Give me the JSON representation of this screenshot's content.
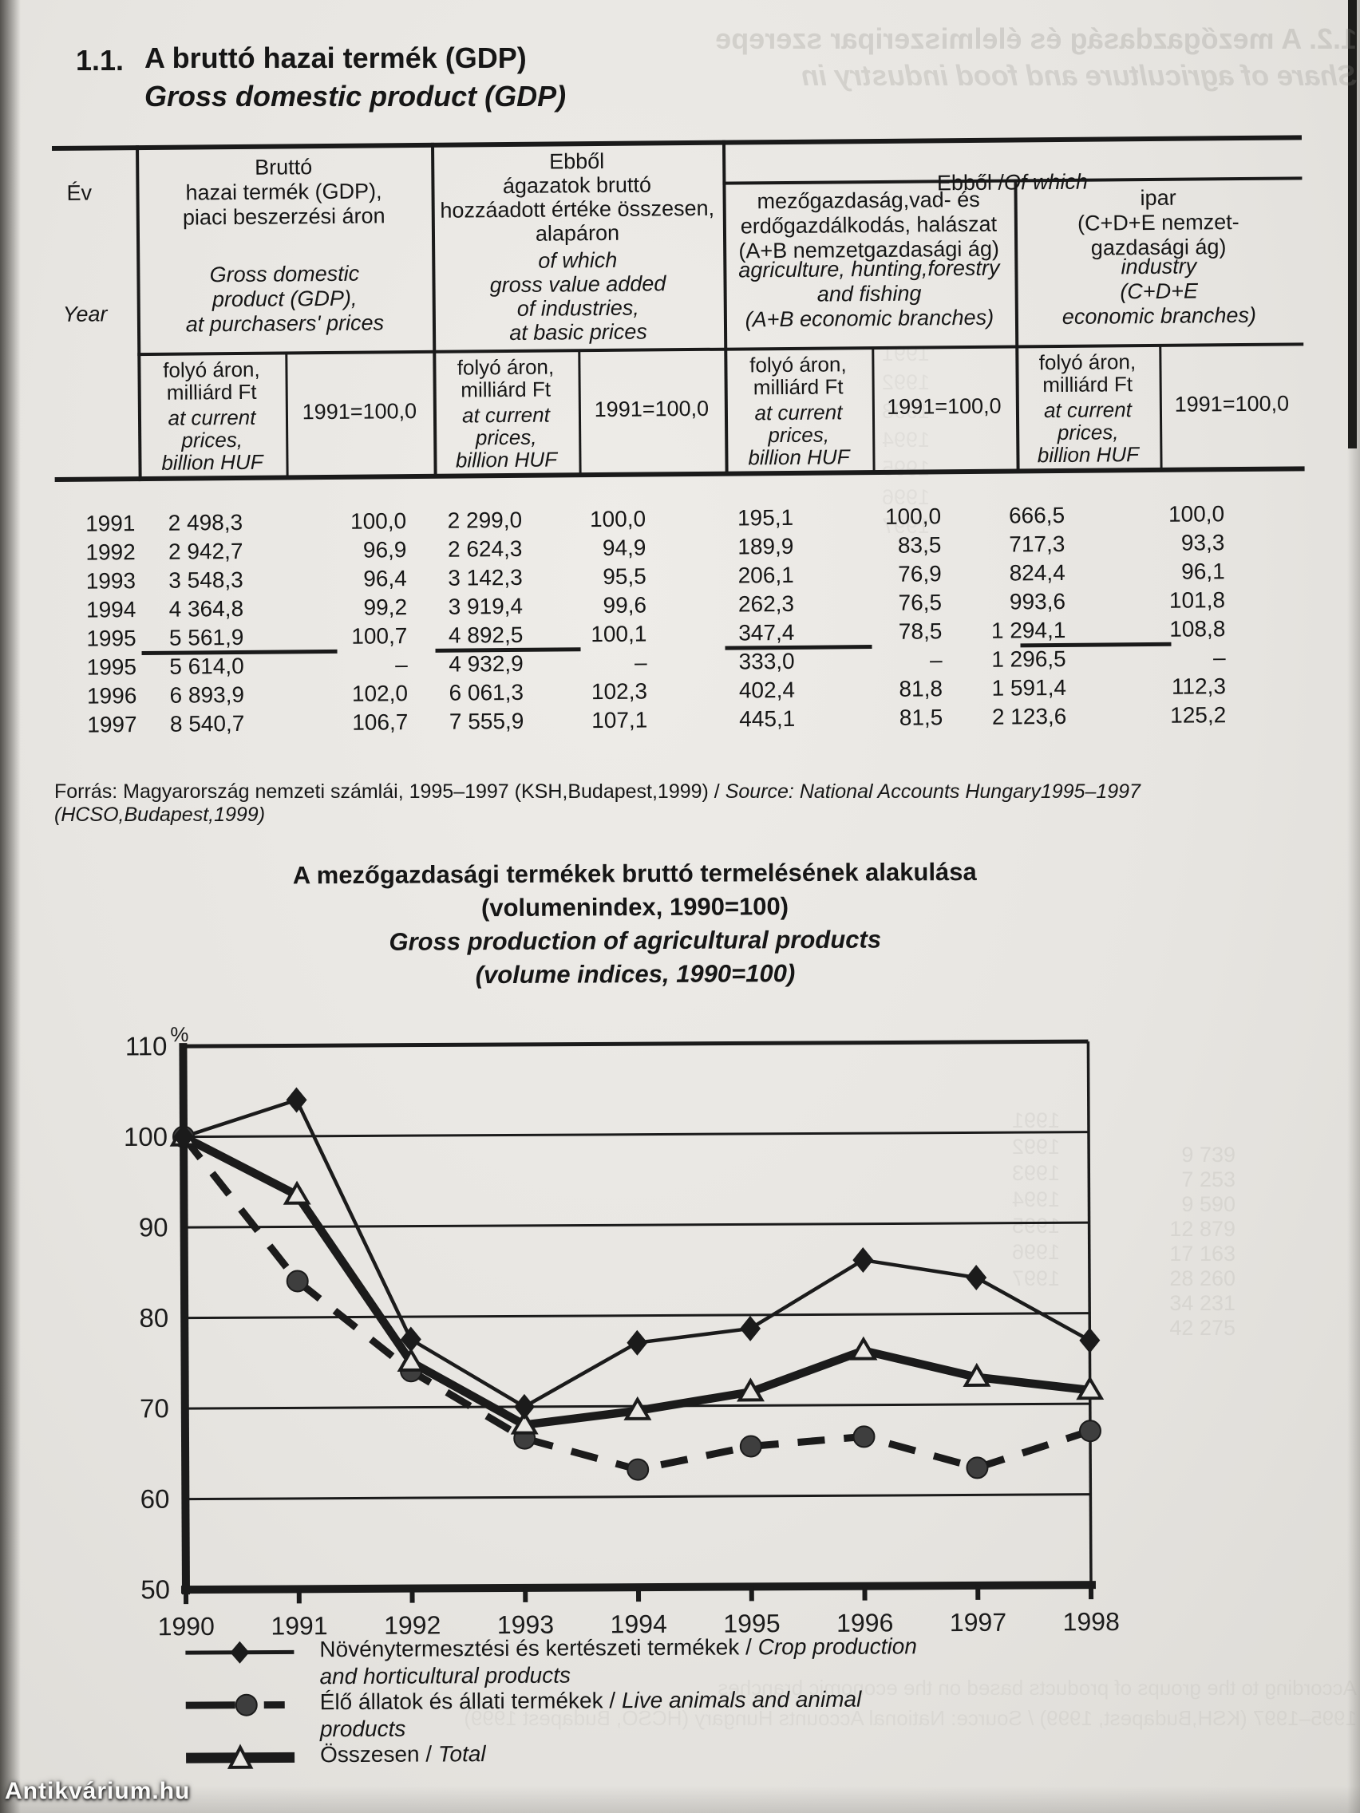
{
  "page": {
    "section_number": "1.1.",
    "title_hu": "A bruttó hazai termék (GDP)",
    "title_en": "Gross domestic product (GDP)"
  },
  "table": {
    "corner": {
      "hu": "Év",
      "en": "Year"
    },
    "of_which": {
      "hu": "Ebből /",
      "en": "Of which"
    },
    "groups": [
      {
        "hu": "Bruttó\nhazai termék (GDP),\npiaci beszerzési  áron",
        "en": "Gross domestic\nproduct (GDP),\nat purchasers'  prices"
      },
      {
        "hu": "Ebből\nágazatok bruttó\nhozzáadott értéke összesen,\nalapáron",
        "en": "of which\ngross value added\nof industries,\nat basic prices"
      },
      {
        "hu": "mezőgazdaság,vad- és\nerdőgazdálkodás, halászat\n(A+B nemzetgazdasági ág)",
        "en": "agriculture, hunting,forestry\nand fishing\n(A+B economic branches)"
      },
      {
        "hu": "ipar\n(C+D+E nemzet-\ngazdasági ág)",
        "en": "industry\n(C+D+E\neconomic branches)"
      }
    ],
    "subheaders": {
      "current_hu": "folyó áron,\nmilliárd Ft",
      "current_en": "at current\nprices,\nbillion  HUF",
      "index": "1991=100,0"
    },
    "rows": [
      {
        "year": "1991",
        "values": [
          "2 498,3",
          "100,0",
          "2 299,0",
          "100,0",
          "195,1",
          "100,0",
          "666,5",
          "100,0"
        ],
        "rule_after": false
      },
      {
        "year": "1992",
        "values": [
          "2 942,7",
          "96,9",
          "2 624,3",
          "94,9",
          "189,9",
          "83,5",
          "717,3",
          "93,3"
        ],
        "rule_after": false
      },
      {
        "year": "1993",
        "values": [
          "3 548,3",
          "96,4",
          "3 142,3",
          "95,5",
          "206,1",
          "76,9",
          "824,4",
          "96,1"
        ],
        "rule_after": false
      },
      {
        "year": "1994",
        "values": [
          "4 364,8",
          "99,2",
          "3 919,4",
          "99,6",
          "262,3",
          "76,5",
          "993,6",
          "101,8"
        ],
        "rule_after": false
      },
      {
        "year": "1995",
        "values": [
          "5 561,9",
          "100,7",
          "4 892,5",
          "100,1",
          "347,4",
          "78,5",
          "1 294,1",
          "108,8"
        ],
        "rule_after": true
      },
      {
        "year": "1995",
        "values": [
          "5 614,0",
          "–",
          "4 932,9",
          "–",
          "333,0",
          "–",
          "1 296,5",
          "–"
        ],
        "rule_after": false
      },
      {
        "year": "1996",
        "values": [
          "6 893,9",
          "102,0",
          "6 061,3",
          "102,3",
          "402,4",
          "81,8",
          "1 591,4",
          "112,3"
        ],
        "rule_after": false
      },
      {
        "year": "1997",
        "values": [
          "8 540,7",
          "106,7",
          "7 555,9",
          "107,1",
          "445,1",
          "81,5",
          "2 123,6",
          "125,2"
        ],
        "rule_after": false
      }
    ]
  },
  "source": {
    "hu": "Forrás: Magyarország nemzeti számlái, 1995–1997 (KSH,Budapest,1999) /",
    "en": " Source: National Accounts Hungary1995–1997 (HCSO,Budapest,1999)"
  },
  "chart_data": {
    "type": "line",
    "title_hu": "A mezőgazdasági termékek bruttó termelésének alakulása",
    "subtitle_hu": "(volumenindex, 1990=100)",
    "title_en": "Gross production of  agricultural products",
    "subtitle_en": "(volume indices, 1990=100)",
    "x": [
      1990,
      1991,
      1992,
      1993,
      1994,
      1995,
      1996,
      1997,
      1998
    ],
    "y_unit": "%",
    "ylim": [
      50,
      110
    ],
    "ytick_step": 10,
    "grid": true,
    "legend_position": "below-left",
    "series": [
      {
        "name_hu": "Növénytermesztési és kertészeti termékek",
        "name_en": "Crop production and horticultural products",
        "marker": "filled-diamond",
        "line_style": "solid-thin",
        "values": [
          100,
          104,
          77.5,
          70,
          77,
          78.5,
          86,
          84,
          77
        ]
      },
      {
        "name_hu": "Élő állatok és állati termékek",
        "name_en": "Live animals and animal products",
        "marker": "filled-circle",
        "line_style": "dashed-thick",
        "values": [
          100,
          84,
          74,
          66.5,
          63,
          65.5,
          66.5,
          63,
          67
        ]
      },
      {
        "name_hu": "Összesen",
        "name_en": "Total",
        "marker": "open-triangle",
        "line_style": "solid-extra-thick",
        "values": [
          100,
          93.5,
          75,
          68,
          69.5,
          71.5,
          76,
          73,
          71.5
        ]
      }
    ]
  },
  "legend": {
    "entries": [
      {
        "marker": "filled-diamond",
        "lines": [
          {
            "hu": "Növénytermesztési és kertészeti termékek / ",
            "en": "Crop production"
          },
          {
            "hu": "",
            "en": "and horticultural products"
          }
        ]
      },
      {
        "marker": "filled-circle",
        "lines": [
          {
            "hu": "Élő állatok és állati termékek / ",
            "en": "Live animals and animal"
          },
          {
            "hu": "",
            "en": "products"
          }
        ]
      },
      {
        "marker": "open-triangle",
        "lines": [
          {
            "hu": "Összesen / ",
            "en": "Total"
          }
        ]
      }
    ]
  },
  "ghosts": {
    "top_line1": "1.2. A mezőgazdaság és élelmiszeripar szerepe",
    "top_line2": "Share of agriculture and food industry in",
    "table_years_col": "1991\n1992\n1993\n1994\n1995\n1996\n1997",
    "chart_years_col": "1991\n1992\n1993\n1994\n1995\n1996\n1997",
    "chart_numbers_col": "9 739\n7 253\n9 590\n12 879\n17 163\n28 260\n34 231\n42 275",
    "bottom_line1": "According to the groups of products based on the economic branches",
    "bottom_line2": "1995–1997 (KSH,Budapest, 1999) / Source: National Accounts Hungary (HCSO, Budapest 1999)"
  },
  "watermark": "Antikvárium.hu"
}
